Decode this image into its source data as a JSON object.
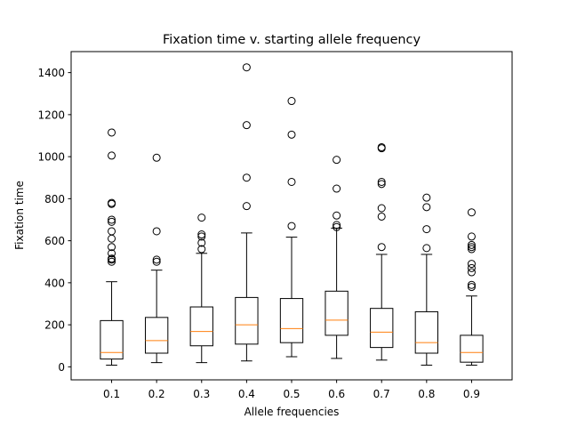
{
  "chart_data": {
    "type": "box",
    "title": "Fixation time v. starting allele frequency",
    "xlabel": "Allele frequencies",
    "ylabel": "Fixation time",
    "ylim": [
      -62,
      1500
    ],
    "yticks": [
      0,
      200,
      400,
      600,
      800,
      1000,
      1200,
      1400
    ],
    "grid": false,
    "colors": {
      "box": "#000000",
      "median": "#ff7f0e",
      "flier": "#000000"
    },
    "categories": [
      "0.1",
      "0.2",
      "0.3",
      "0.4",
      "0.5",
      "0.6",
      "0.7",
      "0.8",
      "0.9"
    ],
    "boxes": [
      {
        "label": "0.1",
        "whisker_low": 8,
        "q1": 37,
        "median": 68,
        "q3": 220,
        "whisker_high": 405,
        "fliers": [
          500,
          510,
          515,
          540,
          570,
          610,
          645,
          690,
          700,
          775,
          780,
          1005,
          1115
        ]
      },
      {
        "label": "0.2",
        "whisker_low": 20,
        "q1": 65,
        "median": 125,
        "q3": 235,
        "whisker_high": 460,
        "fliers": [
          500,
          510,
          645,
          995
        ]
      },
      {
        "label": "0.3",
        "whisker_low": 20,
        "q1": 100,
        "median": 168,
        "q3": 285,
        "whisker_high": 540,
        "fliers": [
          560,
          590,
          620,
          630,
          710
        ]
      },
      {
        "label": "0.4",
        "whisker_low": 28,
        "q1": 108,
        "median": 200,
        "q3": 330,
        "whisker_high": 637,
        "fliers": [
          765,
          900,
          1150,
          1425
        ]
      },
      {
        "label": "0.5",
        "whisker_low": 48,
        "q1": 115,
        "median": 182,
        "q3": 325,
        "whisker_high": 617,
        "fliers": [
          670,
          880,
          1105,
          1265
        ]
      },
      {
        "label": "0.6",
        "whisker_low": 40,
        "q1": 150,
        "median": 222,
        "q3": 360,
        "whisker_high": 660,
        "fliers": [
          665,
          675,
          720,
          848,
          985
        ]
      },
      {
        "label": "0.7",
        "whisker_low": 32,
        "q1": 92,
        "median": 165,
        "q3": 278,
        "whisker_high": 535,
        "fliers": [
          570,
          715,
          755,
          870,
          880,
          1040,
          1045
        ]
      },
      {
        "label": "0.8",
        "whisker_low": 8,
        "q1": 65,
        "median": 115,
        "q3": 262,
        "whisker_high": 535,
        "fliers": [
          565,
          655,
          760,
          805
        ]
      },
      {
        "label": "0.9",
        "whisker_low": 8,
        "q1": 22,
        "median": 68,
        "q3": 150,
        "whisker_high": 337,
        "fliers": [
          380,
          390,
          450,
          470,
          490,
          560,
          570,
          580,
          620,
          735
        ]
      }
    ]
  }
}
